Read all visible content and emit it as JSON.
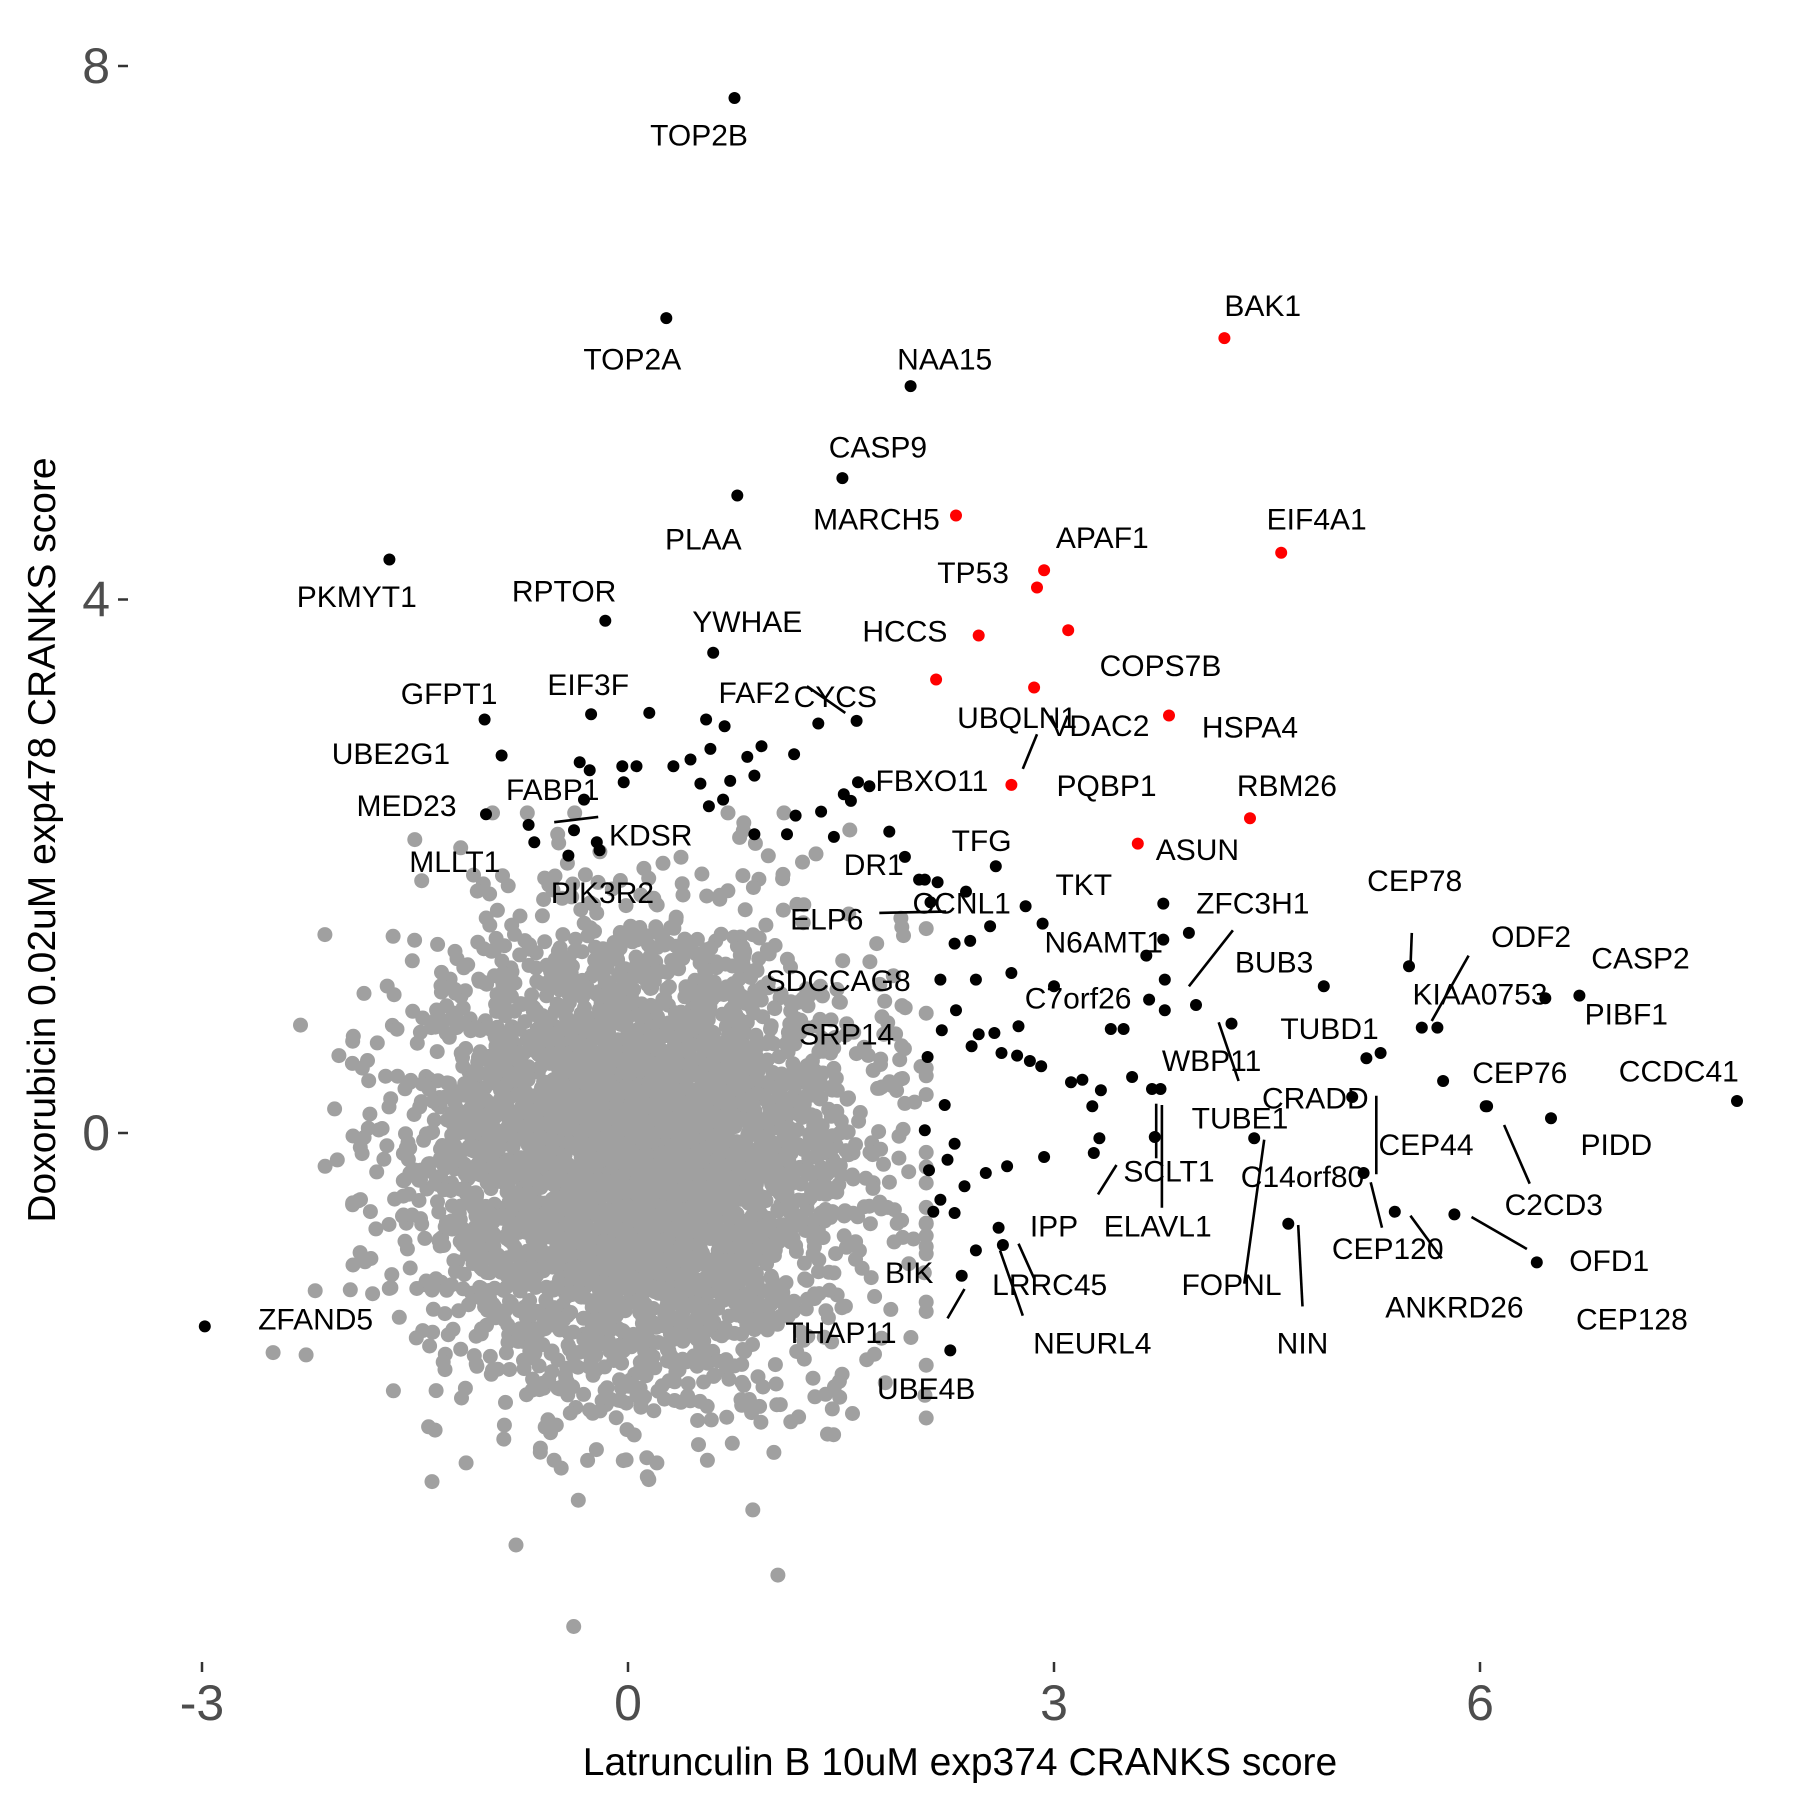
{
  "chart_data": {
    "type": "scatter",
    "title": "",
    "xlabel": "Latrunculin B 10uM exp374 CRANKS score",
    "ylabel": "Doxorubicin 0.02uM exp478 CRANKS score",
    "xlim": [
      -3.1,
      7.9
    ],
    "ylim": [
      -3.8,
      8.3
    ],
    "x_ticks": [
      -3,
      0,
      3,
      6
    ],
    "y_ticks": [
      0,
      4,
      8
    ],
    "x_tick_labels": [
      "-3",
      "0",
      "3",
      "6"
    ],
    "y_tick_labels": [
      "0",
      "4",
      "8"
    ],
    "grid": false,
    "legend": "none",
    "colors": {
      "background": "#gray",
      "highlight": "#ff0000",
      "hit": "#000000",
      "tick": "#4d4d4d"
    },
    "background_cloud": {
      "count": 4200,
      "x_mean": 0.05,
      "x_sd": 0.75,
      "y_mean": -0.2,
      "y_sd": 0.85,
      "color": "#a0a0a0"
    },
    "labeled_points": [
      {
        "gene": "TOP2B",
        "x": 0.75,
        "y": 7.76,
        "color": "#000000"
      },
      {
        "gene": "TOP2A",
        "x": 0.27,
        "y": 6.11,
        "color": "#000000"
      },
      {
        "gene": "NAA15",
        "x": 1.99,
        "y": 5.6,
        "color": "#000000"
      },
      {
        "gene": "BAK1",
        "x": 4.2,
        "y": 5.96,
        "color": "#ff0000"
      },
      {
        "gene": "CASP9",
        "x": 1.51,
        "y": 4.91,
        "color": "#000000"
      },
      {
        "gene": "PLAA",
        "x": 0.77,
        "y": 4.78,
        "color": "#000000"
      },
      {
        "gene": "MARCH5",
        "x": 2.31,
        "y": 4.63,
        "color": "#ff0000"
      },
      {
        "gene": "EIF4A1",
        "x": 4.6,
        "y": 4.35,
        "color": "#ff0000"
      },
      {
        "gene": "APAF1",
        "x": 2.93,
        "y": 4.22,
        "color": "#ff0000"
      },
      {
        "gene": "TP53",
        "x": 2.88,
        "y": 4.09,
        "color": "#ff0000"
      },
      {
        "gene": "PKMYT1",
        "x": -1.68,
        "y": 4.3,
        "color": "#000000"
      },
      {
        "gene": "RPTOR",
        "x": -0.16,
        "y": 3.84,
        "color": "#000000"
      },
      {
        "gene": "YWHAE",
        "x": 0.6,
        "y": 3.6,
        "color": "#000000"
      },
      {
        "gene": "HCCS",
        "x": 2.47,
        "y": 3.73,
        "color": "#ff0000"
      },
      {
        "gene": "COPS7B",
        "x": 3.1,
        "y": 3.77,
        "color": "#ff0000"
      },
      {
        "gene": "UBQLN1",
        "x": 2.17,
        "y": 3.4,
        "color": "#ff0000"
      },
      {
        "gene": "VDAC2",
        "x": 2.86,
        "y": 3.34,
        "color": "#ff0000"
      },
      {
        "gene": "HSPA4",
        "x": 3.81,
        "y": 3.13,
        "color": "#ff0000"
      },
      {
        "gene": "PQBP1",
        "x": 2.7,
        "y": 2.61,
        "color": "#ff0000"
      },
      {
        "gene": "RBM26",
        "x": 4.38,
        "y": 2.36,
        "color": "#ff0000"
      },
      {
        "gene": "ASUN",
        "x": 3.59,
        "y": 2.17,
        "color": "#ff0000"
      },
      {
        "gene": "GFPT1",
        "x": -1.01,
        "y": 3.1,
        "color": "#000000"
      },
      {
        "gene": "EIF3F",
        "x": -0.26,
        "y": 3.14,
        "color": "#000000"
      },
      {
        "gene": "FAF2",
        "x": 1.34,
        "y": 3.07,
        "color": "#000000"
      },
      {
        "gene": "CYCS",
        "x": 1.61,
        "y": 3.09,
        "color": "#000000"
      },
      {
        "gene": "UBE2G1",
        "x": -0.89,
        "y": 2.83,
        "color": "#000000"
      },
      {
        "gene": "FBXO11",
        "x": 1.62,
        "y": 2.63,
        "color": "#000000"
      },
      {
        "gene": "MED23",
        "x": -1.0,
        "y": 2.39,
        "color": "#000000"
      },
      {
        "gene": "FABP1",
        "x": -0.7,
        "y": 2.31,
        "color": "#000000"
      },
      {
        "gene": "KDSR",
        "x": -0.38,
        "y": 2.27,
        "color": "#000000"
      },
      {
        "gene": "MLLT1",
        "x": -0.66,
        "y": 2.18,
        "color": "#000000"
      },
      {
        "gene": "PIK3R2",
        "x": -0.2,
        "y": 2.12,
        "color": "#000000"
      },
      {
        "gene": "TFG",
        "x": 2.59,
        "y": 2.0,
        "color": "#000000"
      },
      {
        "gene": "DR1",
        "x": 2.18,
        "y": 1.88,
        "color": "#000000"
      },
      {
        "gene": "TKT",
        "x": 3.77,
        "y": 1.72,
        "color": "#000000"
      },
      {
        "gene": "CCNL1",
        "x": 2.38,
        "y": 1.81,
        "color": "#000000"
      },
      {
        "gene": "ELP6",
        "x": 2.13,
        "y": 1.73,
        "color": "#000000"
      },
      {
        "gene": "ZFC3H1",
        "x": 3.95,
        "y": 1.5,
        "color": "#000000"
      },
      {
        "gene": "N6AMT1",
        "x": 3.65,
        "y": 1.33,
        "color": "#000000"
      },
      {
        "gene": "SDCCAG8",
        "x": 2.41,
        "y": 1.44,
        "color": "#000000"
      },
      {
        "gene": "BUB3",
        "x": 4.9,
        "y": 1.1,
        "color": "#000000"
      },
      {
        "gene": "C7orf26",
        "x": 3.0,
        "y": 1.1,
        "color": "#000000"
      },
      {
        "gene": "CEP78",
        "x": 5.5,
        "y": 1.25,
        "color": "#000000"
      },
      {
        "gene": "ODF2",
        "x": 5.59,
        "y": 0.79,
        "color": "#000000"
      },
      {
        "gene": "CASP2",
        "x": 6.7,
        "y": 1.03,
        "color": "#000000"
      },
      {
        "gene": "KIAA0753",
        "x": 5.7,
        "y": 0.79,
        "color": "#000000"
      },
      {
        "gene": "PIBF1",
        "x": 6.46,
        "y": 1.01,
        "color": "#000000"
      },
      {
        "gene": "TUBD1",
        "x": 5.3,
        "y": 0.6,
        "color": "#000000"
      },
      {
        "gene": "SRP14",
        "x": 2.21,
        "y": 0.77,
        "color": "#000000"
      },
      {
        "gene": "WBP11",
        "x": 4.0,
        "y": 0.96,
        "color": "#000000"
      },
      {
        "gene": "CCDC41",
        "x": 7.81,
        "y": 0.24,
        "color": "#000000"
      },
      {
        "gene": "CEP76",
        "x": 5.74,
        "y": 0.39,
        "color": "#000000"
      },
      {
        "gene": "CRADD",
        "x": 5.2,
        "y": 0.56,
        "color": "#000000"
      },
      {
        "gene": "TUBE1",
        "x": 3.75,
        "y": 0.33,
        "color": "#000000"
      },
      {
        "gene": "PIDD",
        "x": 6.5,
        "y": 0.11,
        "color": "#000000"
      },
      {
        "gene": "CEP44",
        "x": 6.05,
        "y": 0.2,
        "color": "#000000"
      },
      {
        "gene": "SCLT1",
        "x": 3.69,
        "y": 0.33,
        "color": "#000000"
      },
      {
        "gene": "C14orf80",
        "x": 5.1,
        "y": 0.27,
        "color": "#000000"
      },
      {
        "gene": "C2CD3",
        "x": 6.04,
        "y": 0.2,
        "color": "#000000"
      },
      {
        "gene": "IPP",
        "x": 3.28,
        "y": -0.15,
        "color": "#000000"
      },
      {
        "gene": "ELAVL1",
        "x": 3.71,
        "y": -0.03,
        "color": "#000000"
      },
      {
        "gene": "CEP120",
        "x": 5.18,
        "y": -0.3,
        "color": "#000000"
      },
      {
        "gene": "OFD1",
        "x": 5.82,
        "y": -0.61,
        "color": "#000000"
      },
      {
        "gene": "BIK",
        "x": 2.61,
        "y": -0.71,
        "color": "#000000"
      },
      {
        "gene": "LRRC45",
        "x": 2.64,
        "y": -0.84,
        "color": "#000000"
      },
      {
        "gene": "ANKRD26",
        "x": 5.4,
        "y": -0.59,
        "color": "#000000"
      },
      {
        "gene": "FOPNL",
        "x": 4.41,
        "y": -0.04,
        "color": "#000000"
      },
      {
        "gene": "CEP128",
        "x": 6.4,
        "y": -0.97,
        "color": "#000000"
      },
      {
        "gene": "THAP11",
        "x": 2.35,
        "y": -1.07,
        "color": "#000000"
      },
      {
        "gene": "NIN",
        "x": 4.65,
        "y": -0.68,
        "color": "#000000"
      },
      {
        "gene": "NEURL4",
        "x": 2.45,
        "y": -0.88,
        "color": "#000000"
      },
      {
        "gene": "UBE4B",
        "x": 2.27,
        "y": -1.63,
        "color": "#000000"
      },
      {
        "gene": "ZFAND5",
        "x": -2.98,
        "y": -1.45,
        "color": "#000000"
      }
    ],
    "other_hits": [
      [
        0.15,
        3.15
      ],
      [
        0.55,
        3.1
      ],
      [
        0.68,
        3.05
      ],
      [
        0.94,
        2.9
      ],
      [
        1.17,
        2.84
      ],
      [
        0.44,
        2.8
      ],
      [
        0.58,
        2.88
      ],
      [
        0.84,
        2.82
      ],
      [
        0.06,
        2.75
      ],
      [
        -0.04,
        2.75
      ],
      [
        0.89,
        2.68
      ],
      [
        0.32,
        2.75
      ],
      [
        0.72,
        2.64
      ],
      [
        0.51,
        2.62
      ],
      [
        -0.34,
        2.78
      ],
      [
        -0.27,
        2.72
      ],
      [
        0.67,
        2.5
      ],
      [
        0.57,
        2.45
      ],
      [
        -0.03,
        2.63
      ],
      [
        1.52,
        2.54
      ],
      [
        1.7,
        2.6
      ],
      [
        1.57,
        2.49
      ],
      [
        1.18,
        2.38
      ],
      [
        1.36,
        2.41
      ],
      [
        -0.31,
        2.5
      ],
      [
        -0.22,
        2.18
      ],
      [
        0.89,
        2.24
      ],
      [
        1.12,
        2.24
      ],
      [
        1.84,
        2.26
      ],
      [
        1.95,
        2.07
      ],
      [
        2.05,
        1.9
      ],
      [
        2.09,
        1.9
      ],
      [
        1.45,
        2.22
      ],
      [
        -0.42,
        2.08
      ],
      [
        2.55,
        1.55
      ],
      [
        2.8,
        1.7
      ],
      [
        2.92,
        1.57
      ],
      [
        2.3,
        1.42
      ],
      [
        2.2,
        1.15
      ],
      [
        2.45,
        1.15
      ],
      [
        2.7,
        1.2
      ],
      [
        2.47,
        0.74
      ],
      [
        2.58,
        0.75
      ],
      [
        2.75,
        0.8
      ],
      [
        2.42,
        0.65
      ],
      [
        2.63,
        0.6
      ],
      [
        2.83,
        0.54
      ],
      [
        3.2,
        0.4
      ],
      [
        3.12,
        0.38
      ],
      [
        3.33,
        0.32
      ],
      [
        3.55,
        0.42
      ],
      [
        3.27,
        0.2
      ],
      [
        2.11,
        0.57
      ],
      [
        2.23,
        0.21
      ],
      [
        2.09,
        0.02
      ],
      [
        2.3,
        -0.08
      ],
      [
        2.25,
        -0.2
      ],
      [
        2.12,
        -0.28
      ],
      [
        2.37,
        -0.4
      ],
      [
        2.52,
        -0.3
      ],
      [
        2.2,
        -0.5
      ],
      [
        2.15,
        -0.59
      ],
      [
        2.3,
        -0.6
      ],
      [
        2.67,
        -0.25
      ],
      [
        2.93,
        -0.18
      ],
      [
        3.32,
        -0.04
      ],
      [
        3.77,
        1.45
      ],
      [
        3.78,
        1.15
      ],
      [
        3.78,
        0.92
      ],
      [
        4.25,
        0.82
      ],
      [
        3.67,
        1.0
      ],
      [
        3.4,
        0.78
      ],
      [
        3.49,
        0.78
      ],
      [
        2.74,
        0.58
      ],
      [
        2.91,
        0.5
      ],
      [
        2.31,
        0.92
      ]
    ],
    "leader_lines": [
      [
        1.53,
        3.15,
        1.26,
        3.35
      ],
      [
        2.78,
        2.73,
        2.88,
        2.99
      ],
      [
        -0.52,
        2.33,
        -0.21,
        2.37
      ],
      [
        2.24,
        1.66,
        1.77,
        1.65
      ],
      [
        3.95,
        1.1,
        4.26,
        1.52
      ],
      [
        5.51,
        1.23,
        5.52,
        1.5
      ],
      [
        5.66,
        0.84,
        5.92,
        1.33
      ],
      [
        4.16,
        0.83,
        4.3,
        0.39
      ],
      [
        5.27,
        0.28,
        5.27,
        -0.31
      ],
      [
        3.76,
        0.21,
        3.76,
        -0.56
      ],
      [
        3.72,
        0.22,
        3.72,
        -0.19
      ],
      [
        6.17,
        0.06,
        6.35,
        -0.38
      ],
      [
        3.44,
        -0.24,
        3.31,
        -0.46
      ],
      [
        5.23,
        -0.37,
        5.31,
        -0.71
      ],
      [
        2.75,
        -0.83,
        2.86,
        -1.09
      ],
      [
        5.94,
        -0.63,
        6.33,
        -0.87
      ],
      [
        4.48,
        -0.05,
        4.34,
        -1.13
      ],
      [
        5.51,
        -0.62,
        5.73,
        -0.94
      ],
      [
        2.62,
        -0.88,
        2.78,
        -1.37
      ],
      [
        4.72,
        -0.69,
        4.75,
        -1.3
      ],
      [
        2.37,
        -1.17,
        2.25,
        -1.39
      ]
    ],
    "labels": [
      {
        "text": "TOP2B",
        "x": 0.5,
        "y": 7.48
      },
      {
        "text": "TOP2A",
        "x": 0.03,
        "y": 5.8
      },
      {
        "text": "NAA15",
        "x": 2.23,
        "y": 5.8
      },
      {
        "text": "BAK1",
        "x": 4.47,
        "y": 6.2
      },
      {
        "text": "CASP9",
        "x": 1.76,
        "y": 5.14
      },
      {
        "text": "PLAA",
        "x": 0.53,
        "y": 4.45
      },
      {
        "text": "MARCH5",
        "x": 1.75,
        "y": 4.6
      },
      {
        "text": "EIF4A1",
        "x": 4.85,
        "y": 4.6
      },
      {
        "text": "APAF1",
        "x": 3.34,
        "y": 4.46
      },
      {
        "text": "TP53",
        "x": 2.43,
        "y": 4.2
      },
      {
        "text": "PKMYT1",
        "x": -1.91,
        "y": 4.02
      },
      {
        "text": "RPTOR",
        "x": -0.45,
        "y": 4.06
      },
      {
        "text": "YWHAE",
        "x": 0.84,
        "y": 3.83
      },
      {
        "text": "HCCS",
        "x": 1.95,
        "y": 3.76
      },
      {
        "text": "COPS7B",
        "x": 3.75,
        "y": 3.5
      },
      {
        "text": "UBQLN1",
        "x": 2.74,
        "y": 3.11
      },
      {
        "text": "VDAC2",
        "x": 3.32,
        "y": 3.05
      },
      {
        "text": "HSPA4",
        "x": 4.38,
        "y": 3.04
      },
      {
        "text": "PQBP1",
        "x": 3.37,
        "y": 2.6
      },
      {
        "text": "RBM26",
        "x": 4.64,
        "y": 2.6
      },
      {
        "text": "ASUN",
        "x": 4.01,
        "y": 2.12
      },
      {
        "text": "GFPT1",
        "x": -1.26,
        "y": 3.29
      },
      {
        "text": "EIF3F",
        "x": -0.28,
        "y": 3.36
      },
      {
        "text": "FAF2",
        "x": 0.89,
        "y": 3.3
      },
      {
        "text": "CYCS",
        "x": 1.46,
        "y": 3.27
      },
      {
        "text": "UBE2G1",
        "x": -1.67,
        "y": 2.84
      },
      {
        "text": "FBXO11",
        "x": 2.14,
        "y": 2.64
      },
      {
        "text": "MED23",
        "x": -1.56,
        "y": 2.45
      },
      {
        "text": "FABP1",
        "x": -0.53,
        "y": 2.57
      },
      {
        "text": "KDSR",
        "x": 0.16,
        "y": 2.23
      },
      {
        "text": "MLLT1",
        "x": -1.22,
        "y": 2.03
      },
      {
        "text": "PIK3R2",
        "x": -0.18,
        "y": 1.8
      },
      {
        "text": "TFG",
        "x": 2.49,
        "y": 2.19
      },
      {
        "text": "DR1",
        "x": 1.73,
        "y": 2.01
      },
      {
        "text": "TKT",
        "x": 3.21,
        "y": 1.86
      },
      {
        "text": "CCNL1",
        "x": 2.35,
        "y": 1.72
      },
      {
        "text": "ELP6",
        "x": 1.4,
        "y": 1.6
      },
      {
        "text": "ZFC3H1",
        "x": 4.4,
        "y": 1.72
      },
      {
        "text": "N6AMT1",
        "x": 3.35,
        "y": 1.43
      },
      {
        "text": "SDCCAG8",
        "x": 1.48,
        "y": 1.14
      },
      {
        "text": "BUB3",
        "x": 4.55,
        "y": 1.28
      },
      {
        "text": "C7orf26",
        "x": 3.17,
        "y": 1.01
      },
      {
        "text": "CEP78",
        "x": 5.54,
        "y": 1.89
      },
      {
        "text": "ODF2",
        "x": 6.36,
        "y": 1.47
      },
      {
        "text": "CASP2",
        "x": 7.13,
        "y": 1.31
      },
      {
        "text": "KIAA0753",
        "x": 6.0,
        "y": 1.04
      },
      {
        "text": "PIBF1",
        "x": 7.03,
        "y": 0.89
      },
      {
        "text": "TUBD1",
        "x": 4.94,
        "y": 0.78
      },
      {
        "text": "SRP14",
        "x": 1.54,
        "y": 0.74
      },
      {
        "text": "WBP11",
        "x": 4.11,
        "y": 0.54
      },
      {
        "text": "CCDC41",
        "x": 7.4,
        "y": 0.46
      },
      {
        "text": "CEP76",
        "x": 6.28,
        "y": 0.45
      },
      {
        "text": "CRADD",
        "x": 4.84,
        "y": 0.26
      },
      {
        "text": "TUBE1",
        "x": 4.31,
        "y": 0.11
      },
      {
        "text": "PIDD",
        "x": 6.96,
        "y": -0.09
      },
      {
        "text": "CEP44",
        "x": 5.62,
        "y": -0.09
      },
      {
        "text": "SCLT1",
        "x": 3.81,
        "y": -0.29
      },
      {
        "text": "C14orf80",
        "x": 4.75,
        "y": -0.33
      },
      {
        "text": "C2CD3",
        "x": 6.52,
        "y": -0.54
      },
      {
        "text": "IPP",
        "x": 3.0,
        "y": -0.7
      },
      {
        "text": "ELAVL1",
        "x": 3.73,
        "y": -0.7
      },
      {
        "text": "CEP120",
        "x": 5.35,
        "y": -0.87
      },
      {
        "text": "OFD1",
        "x": 6.91,
        "y": -0.96
      },
      {
        "text": "BIK",
        "x": 1.98,
        "y": -1.05
      },
      {
        "text": "LRRC45",
        "x": 2.97,
        "y": -1.14
      },
      {
        "text": "ANKRD26",
        "x": 5.82,
        "y": -1.31
      },
      {
        "text": "FOPNL",
        "x": 4.25,
        "y": -1.14
      },
      {
        "text": "CEP128",
        "x": 7.07,
        "y": -1.4
      },
      {
        "text": "THAP11",
        "x": 1.5,
        "y": -1.5
      },
      {
        "text": "NIN",
        "x": 4.75,
        "y": -1.58
      },
      {
        "text": "NEURL4",
        "x": 3.27,
        "y": -1.58
      },
      {
        "text": "UBE4B",
        "x": 2.1,
        "y": -1.92
      },
      {
        "text": "ZFAND5",
        "x": -2.2,
        "y": -1.4
      }
    ]
  }
}
